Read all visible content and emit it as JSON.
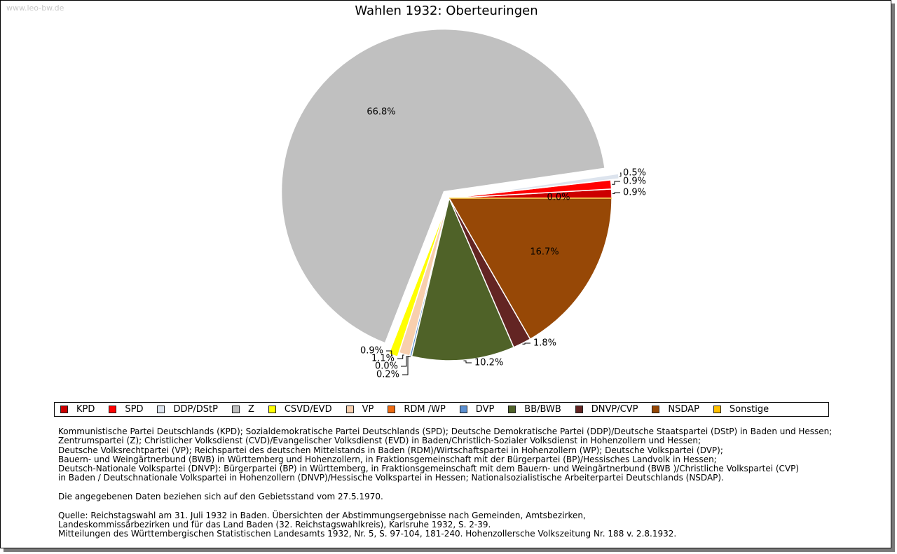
{
  "watermark": "www.leo-bw.de",
  "chart_data": {
    "type": "pie",
    "title": "Wahlen 1932: Oberteuringen",
    "slices": [
      {
        "name": "KPD",
        "value": 0.9,
        "label": "0.9%",
        "color": "#cc0000"
      },
      {
        "name": "SPD",
        "value": 0.9,
        "label": "0.9%",
        "color": "#ff0000"
      },
      {
        "name": "DDP/DStP",
        "value": 0.5,
        "label": "0.5%",
        "color": "#dde4ee"
      },
      {
        "name": "Z",
        "value": 66.8,
        "label": "66.8%",
        "color": "#c0c0c0"
      },
      {
        "name": "CSVD/EVD",
        "value": 0.9,
        "label": "0.9%",
        "color": "#ffff00"
      },
      {
        "name": "VP",
        "value": 1.1,
        "label": "1.1%",
        "color": "#f8cfae"
      },
      {
        "name": "RDM /WP",
        "value": 0.0,
        "label": "0.0%",
        "color": "#ee6a10"
      },
      {
        "name": "DVP",
        "value": 0.2,
        "label": "0.2%",
        "color": "#5b8fd0"
      },
      {
        "name": "BB/BWB",
        "value": 10.2,
        "label": "10.2%",
        "color": "#4f6228"
      },
      {
        "name": "DNVP/CVP",
        "value": 1.8,
        "label": "1.8%",
        "color": "#632523"
      },
      {
        "name": "NSDAP",
        "value": 16.7,
        "label": "16.7%",
        "color": "#974806"
      },
      {
        "name": "Sonstige",
        "value": 0.0,
        "label": "0.0%",
        "color": "#ffc000"
      }
    ],
    "legend_position": "bottom"
  },
  "notes": {
    "parties": [
      "Kommunistische Partei Deutschlands (KPD); Sozialdemokratische Partei Deutschlands (SPD); Deutsche Demokratische Partei (DDP)/Deutsche Staatspartei (DStP) in Baden und Hessen;",
      "Zentrumspartei (Z); Christlicher Volksdienst (CVD)/Evangelischer Volksdienst (EVD) in Baden/Christlich-Sozialer Volksdienst in Hohenzollern und Hessen;",
      "Deutsche Volksrechtpartei (VP); Reichspartei des deutschen Mittelstands in Baden (RDM)/Wirtschaftspartei in Hohenzollern (WP); Deutsche Volkspartei (DVP);",
      "Bauern- und Weingärtnerbund (BWB) in Württemberg und Hohenzollern, in Fraktionsgemeinschaft mit der Bürgerpartei (BP)/Hessisches Landvolk in Hessen;",
      "Deutsch-Nationale Volkspartei (DNVP): Bürgerpartei (BP) in Württemberg, in Fraktionsgemeinschaft mit dem Bauern- und Weingärtnerbund (BWB )/Christliche Volkspartei (CVP)",
      "in Baden / Deutschnationale Volkspartei in Hohenzollern (DNVP)/Hessische Volkspartei in Hessen; Nationalsozialistische Arbeiterpartei Deutschlands (NSDAP)."
    ],
    "territory": "Die angegebenen Daten beziehen sich auf den Gebietsstand vom 27.5.1970.",
    "source": [
      "Quelle: Reichstagswahl am 31. Juli 1932 in Baden. Übersichten der Abstimmungsergebnisse nach Gemeinden, Amtsbezirken,",
      "Landeskommissärbezirken und für das Land Baden (32. Reichstagswahlkreis), Karlsruhe 1932, S. 2-39.",
      "Mitteilungen des Württembergischen Statistischen Landesamts 1932, Nr. 5, S. 97-104, 181-240. Hohenzollersche Volkszeitung Nr. 188 v. 2.8.1932."
    ]
  }
}
